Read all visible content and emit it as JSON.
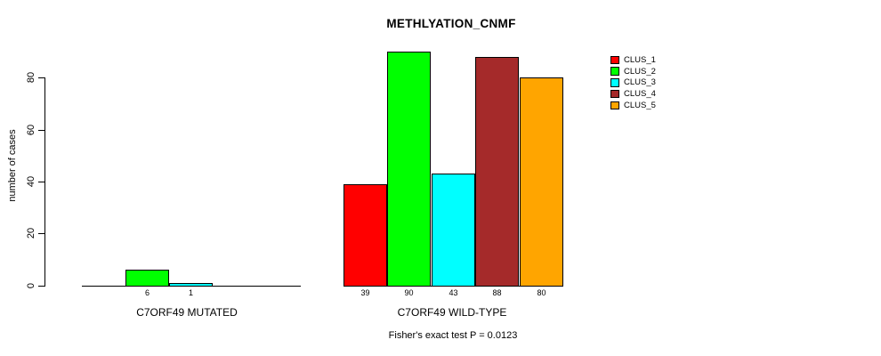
{
  "chart_data": {
    "type": "bar",
    "title": "METHLYATION_CNMF",
    "ylabel": "number of cases",
    "xlabel": "",
    "ylim": [
      0,
      90
    ],
    "yticks": [
      "0",
      "20",
      "40",
      "60",
      "80"
    ],
    "grid": false,
    "legend_position": "right",
    "series": [
      "CLUS_1",
      "CLUS_2",
      "CLUS_3",
      "CLUS_4",
      "CLUS_5"
    ],
    "series_colors": [
      "#FF0000",
      "#00FF00",
      "#00FFFF",
      "#A52A2A",
      "#FFA500"
    ],
    "groups": [
      {
        "label": "C7ORF49 MUTATED",
        "values": [
          0,
          6,
          1,
          0,
          0
        ],
        "bar_labels": [
          "",
          "6",
          "1",
          "",
          ""
        ]
      },
      {
        "label": "C7ORF49 WILD-TYPE",
        "values": [
          39,
          90,
          43,
          88,
          80
        ],
        "bar_labels": [
          "39",
          "90",
          "43",
          "88",
          "80"
        ]
      }
    ],
    "legend": {
      "entries": [
        {
          "label": "CLUS_1",
          "color": "#FF0000"
        },
        {
          "label": "CLUS_2",
          "color": "#00FF00"
        },
        {
          "label": "CLUS_3",
          "color": "#00FFFF"
        },
        {
          "label": "CLUS_4",
          "color": "#A52A2A"
        },
        {
          "label": "CLUS_5",
          "color": "#FFA500"
        }
      ]
    },
    "annotation": "Fisher's exact test P = 0.0123",
    "axis_color": "#000000",
    "background_color": "#FFFFFF"
  }
}
